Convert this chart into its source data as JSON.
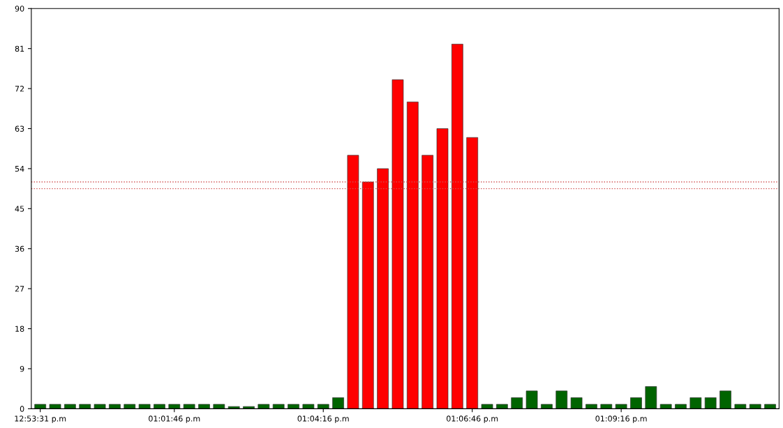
{
  "chart_data": {
    "type": "bar",
    "categories": [
      "12:53:31 p.m",
      null,
      null,
      null,
      null,
      null,
      null,
      null,
      null,
      "01:01:46 p.m",
      null,
      null,
      null,
      null,
      null,
      null,
      null,
      null,
      null,
      "01:04:16 p.m",
      null,
      null,
      null,
      null,
      null,
      null,
      null,
      null,
      null,
      "01:06:46 p.m",
      null,
      null,
      null,
      null,
      null,
      null,
      null,
      null,
      null,
      "01:09:16 p.m",
      null,
      null,
      null,
      null,
      null,
      null,
      null,
      null,
      null,
      null
    ],
    "values": [
      1,
      1,
      1,
      1,
      1,
      1,
      1,
      1,
      1,
      1,
      1,
      1,
      1,
      0.5,
      0.5,
      1,
      1,
      1,
      1,
      1,
      2.5,
      57,
      51,
      54,
      74,
      69,
      57,
      63,
      82,
      61,
      1,
      1,
      2.5,
      4,
      1,
      4,
      2.5,
      1,
      1,
      1,
      2.5,
      5,
      1,
      1,
      2.5,
      2.5,
      4,
      1,
      1,
      1
    ],
    "colors": [
      "#006400",
      "#006400",
      "#006400",
      "#006400",
      "#006400",
      "#006400",
      "#006400",
      "#006400",
      "#006400",
      "#006400",
      "#006400",
      "#006400",
      "#006400",
      "#006400",
      "#006400",
      "#006400",
      "#006400",
      "#006400",
      "#006400",
      "#006400",
      "#006400",
      "#ff0000",
      "#ff0000",
      "#ff0000",
      "#ff0000",
      "#ff0000",
      "#ff0000",
      "#ff0000",
      "#ff0000",
      "#ff0000",
      "#006400",
      "#006400",
      "#006400",
      "#006400",
      "#006400",
      "#006400",
      "#006400",
      "#006400",
      "#006400",
      "#006400",
      "#006400",
      "#006400",
      "#006400",
      "#006400",
      "#006400",
      "#006400",
      "#006400",
      "#006400",
      "#006400",
      "#006400"
    ],
    "ylim": [
      0,
      90
    ],
    "yticks": [
      0,
      9,
      18,
      27,
      36,
      45,
      54,
      63,
      72,
      81,
      90
    ],
    "ref_lines": [
      {
        "axis": "y",
        "value": 51,
        "label": null,
        "color": "#d05050",
        "line_style": "dotted"
      },
      {
        "axis": "y",
        "value": 49.5,
        "label": null,
        "color": "#d05050",
        "line_style": "dotted"
      }
    ],
    "grid": false,
    "legend": false
  }
}
